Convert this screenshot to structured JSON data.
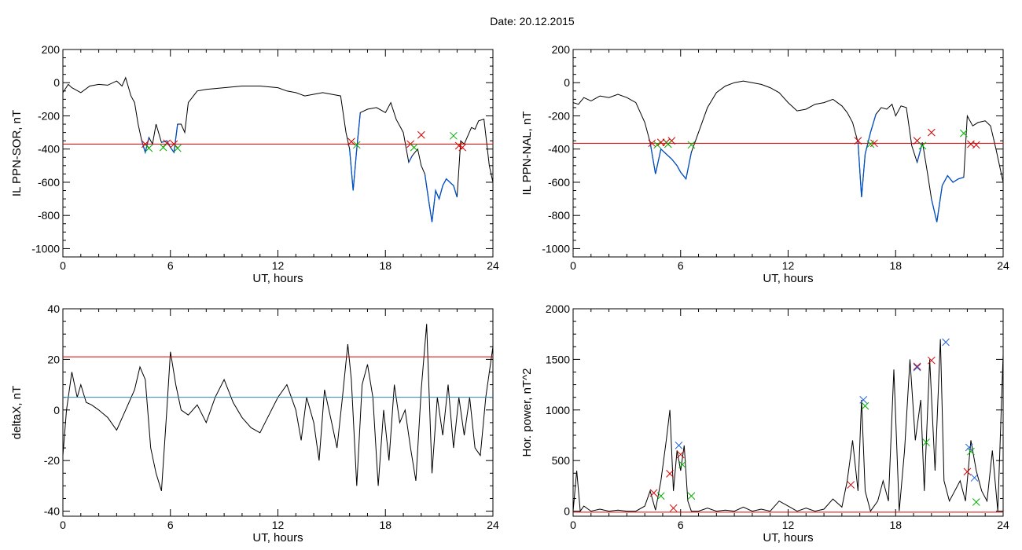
{
  "page": {
    "title": "Date:  20.12.2015"
  },
  "colors": {
    "trace": "#000000",
    "threshold": "#d40000",
    "highlight": "#0050c8",
    "mean": "#2a8ab0",
    "cross_red": "#d40000",
    "cross_green": "#00b000",
    "cross_blue": "#2060e0"
  },
  "chart_data": [
    {
      "id": "sor",
      "type": "line",
      "xlabel": "UT, hours",
      "ylabel": "IL PPN-SOR, nT",
      "xlim": [
        0,
        24
      ],
      "ylim": [
        -1050,
        200
      ],
      "xticks": [
        0,
        6,
        12,
        18,
        24
      ],
      "yticks": [
        200,
        0,
        -200,
        -400,
        -600,
        -800,
        -1000
      ],
      "x": [
        0,
        0.3,
        0.5,
        1,
        1.5,
        2,
        2.5,
        3,
        3.3,
        3.5,
        3.8,
        4,
        4.2,
        4.4,
        4.6,
        4.8,
        5,
        5.2,
        5.5,
        5.8,
        6,
        6.2,
        6.4,
        6.6,
        6.8,
        7,
        7.5,
        8,
        9,
        10,
        11,
        12,
        12.5,
        13,
        13.5,
        14,
        14.5,
        15,
        15.5,
        15.8,
        16,
        16.2,
        16.4,
        16.6,
        17,
        17.5,
        18,
        18.3,
        18.6,
        19,
        19.3,
        19.5,
        19.8,
        20,
        20.2,
        20.4,
        20.6,
        20.8,
        21,
        21.2,
        21.4,
        21.6,
        21.8,
        22,
        22.2,
        22.4,
        22.6,
        22.8,
        23,
        23.2,
        23.5,
        23.8,
        24
      ],
      "y": [
        -60,
        -10,
        -30,
        -60,
        -20,
        -10,
        -15,
        10,
        -20,
        30,
        -80,
        -120,
        -250,
        -350,
        -420,
        -330,
        -370,
        -250,
        -360,
        -350,
        -390,
        -420,
        -250,
        -250,
        -300,
        -120,
        -50,
        -40,
        -30,
        -20,
        -20,
        -30,
        -50,
        -60,
        -80,
        -70,
        -60,
        -70,
        -80,
        -300,
        -400,
        -650,
        -400,
        -180,
        -160,
        -150,
        -180,
        -120,
        -220,
        -300,
        -480,
        -440,
        -400,
        -500,
        -550,
        -700,
        -840,
        -650,
        -700,
        -620,
        -580,
        -600,
        -620,
        -690,
        -350,
        -370,
        -320,
        -270,
        -280,
        -230,
        -220,
        -500,
        -600
      ],
      "highlight_segments": [
        [
          4.4,
          4.8
        ],
        [
          5.5,
          6.5
        ],
        [
          16,
          16.6
        ],
        [
          19.2,
          19.6
        ],
        [
          20.1,
          22
        ]
      ],
      "threshold": -370,
      "crosses": [
        {
          "x": 4.6,
          "y": -370,
          "color": "red"
        },
        {
          "x": 5.8,
          "y": -365,
          "color": "red"
        },
        {
          "x": 6.2,
          "y": -370,
          "color": "red"
        },
        {
          "x": 16.1,
          "y": -355,
          "color": "red"
        },
        {
          "x": 19.4,
          "y": -370,
          "color": "red"
        },
        {
          "x": 20,
          "y": -315,
          "color": "red"
        },
        {
          "x": 22.1,
          "y": -380,
          "color": "red"
        },
        {
          "x": 22.3,
          "y": -390,
          "color": "red"
        },
        {
          "x": 4.8,
          "y": -395,
          "color": "green"
        },
        {
          "x": 5.6,
          "y": -390,
          "color": "green"
        },
        {
          "x": 6.4,
          "y": -395,
          "color": "green"
        },
        {
          "x": 16.4,
          "y": -375,
          "color": "green"
        },
        {
          "x": 19.6,
          "y": -390,
          "color": "green"
        },
        {
          "x": 21.8,
          "y": -320,
          "color": "green"
        }
      ]
    },
    {
      "id": "nal",
      "type": "line",
      "xlabel": "UT, hours",
      "ylabel": "IL PPN-NAL, nT",
      "xlim": [
        0,
        24
      ],
      "ylim": [
        -1050,
        200
      ],
      "xticks": [
        0,
        6,
        12,
        18,
        24
      ],
      "yticks": [
        200,
        0,
        -200,
        -400,
        -600,
        -800,
        -1000
      ],
      "x": [
        0,
        0.3,
        0.6,
        1,
        1.5,
        2,
        2.5,
        3,
        3.5,
        4,
        4.3,
        4.6,
        4.9,
        5.2,
        5.5,
        5.8,
        6,
        6.3,
        6.6,
        7,
        7.5,
        8,
        8.5,
        9,
        9.5,
        10,
        10.5,
        11,
        11.5,
        12,
        12.5,
        13,
        13.5,
        14,
        14.5,
        15,
        15.3,
        15.6,
        15.9,
        16.1,
        16.3,
        16.6,
        16.9,
        17.2,
        17.5,
        17.8,
        18,
        18.3,
        18.6,
        18.9,
        19.2,
        19.5,
        19.8,
        20,
        20.3,
        20.6,
        20.9,
        21.2,
        21.5,
        21.8,
        22,
        22.3,
        22.6,
        23,
        23.3,
        23.6,
        24
      ],
      "y": [
        -120,
        -130,
        -90,
        -110,
        -80,
        -90,
        -70,
        -90,
        -120,
        -240,
        -360,
        -550,
        -400,
        -430,
        -460,
        -500,
        -540,
        -580,
        -420,
        -300,
        -150,
        -60,
        -20,
        0,
        10,
        0,
        -10,
        -30,
        -60,
        -120,
        -170,
        -160,
        -130,
        -120,
        -100,
        -140,
        -180,
        -240,
        -360,
        -690,
        -430,
        -300,
        -190,
        -150,
        -160,
        -130,
        -200,
        -140,
        -150,
        -380,
        -480,
        -360,
        -560,
        -700,
        -840,
        -620,
        -560,
        -600,
        -580,
        -570,
        -200,
        -260,
        -240,
        -230,
        -260,
        -400,
        -600
      ],
      "highlight_segments": [
        [
          4.3,
          6.6
        ],
        [
          15.9,
          16.9
        ],
        [
          19.2,
          19.6
        ],
        [
          20,
          21.8
        ]
      ],
      "threshold": -365,
      "crosses": [
        {
          "x": 4.4,
          "y": -365,
          "color": "red"
        },
        {
          "x": 4.9,
          "y": -360,
          "color": "red"
        },
        {
          "x": 5.2,
          "y": -360,
          "color": "red"
        },
        {
          "x": 5.5,
          "y": -350,
          "color": "red"
        },
        {
          "x": 15.9,
          "y": -350,
          "color": "red"
        },
        {
          "x": 16.8,
          "y": -365,
          "color": "red"
        },
        {
          "x": 19.2,
          "y": -350,
          "color": "red"
        },
        {
          "x": 20,
          "y": -300,
          "color": "red"
        },
        {
          "x": 22.2,
          "y": -370,
          "color": "red"
        },
        {
          "x": 22.5,
          "y": -375,
          "color": "red"
        },
        {
          "x": 4.7,
          "y": -375,
          "color": "green"
        },
        {
          "x": 5.3,
          "y": -370,
          "color": "green"
        },
        {
          "x": 6.6,
          "y": -375,
          "color": "green"
        },
        {
          "x": 16.6,
          "y": -370,
          "color": "green"
        },
        {
          "x": 19.5,
          "y": -380,
          "color": "green"
        },
        {
          "x": 21.8,
          "y": -305,
          "color": "green"
        }
      ]
    },
    {
      "id": "deltax",
      "type": "line",
      "xlabel": "UT, hours",
      "ylabel": "deltaX, nT",
      "xlim": [
        0,
        24
      ],
      "ylim": [
        -42,
        40
      ],
      "xticks": [
        0,
        6,
        12,
        18,
        24
      ],
      "yticks": [
        40,
        20,
        0,
        -20,
        -40
      ],
      "x": [
        0,
        0.2,
        0.5,
        0.8,
        1,
        1.3,
        1.6,
        2,
        2.5,
        3,
        3.5,
        4,
        4.3,
        4.6,
        4.9,
        5.2,
        5.5,
        5.8,
        6,
        6.3,
        6.6,
        7,
        7.5,
        8,
        8.5,
        9,
        9.5,
        10,
        10.5,
        11,
        11.5,
        12,
        12.5,
        13,
        13.3,
        13.6,
        14,
        14.3,
        14.6,
        15,
        15.3,
        15.6,
        15.9,
        16.1,
        16.4,
        16.7,
        17,
        17.3,
        17.6,
        17.9,
        18.2,
        18.5,
        18.8,
        19.1,
        19.4,
        19.7,
        20,
        20.3,
        20.6,
        20.9,
        21.2,
        21.5,
        21.8,
        22.1,
        22.4,
        22.7,
        23,
        23.3,
        23.6,
        24
      ],
      "y": [
        -18,
        0,
        15,
        5,
        10,
        3,
        2,
        0,
        -3,
        -8,
        0,
        8,
        17,
        12,
        -15,
        -25,
        -32,
        0,
        23,
        10,
        0,
        -2,
        2,
        -5,
        5,
        12,
        3,
        -3,
        -7,
        -9,
        -2,
        5,
        10,
        0,
        -12,
        5,
        -5,
        -20,
        8,
        -5,
        -15,
        5,
        26,
        12,
        -30,
        10,
        18,
        5,
        -30,
        0,
        -20,
        10,
        -5,
        0,
        -15,
        -28,
        8,
        34,
        -25,
        5,
        -10,
        10,
        -15,
        5,
        -10,
        5,
        -15,
        -18,
        5,
        25
      ],
      "threshold": 21,
      "mean_line": 5
    },
    {
      "id": "power",
      "type": "line",
      "xlabel": "UT, hours",
      "ylabel": "Hor. power, nT^2",
      "xlim": [
        0,
        24
      ],
      "ylim": [
        -50,
        2000
      ],
      "xticks": [
        0,
        6,
        12,
        18,
        24
      ],
      "yticks": [
        2000,
        1500,
        1000,
        500,
        0
      ],
      "x": [
        0,
        0.2,
        0.4,
        0.6,
        1,
        1.5,
        2,
        2.5,
        3,
        3.5,
        4,
        4.3,
        4.6,
        4.9,
        5.2,
        5.4,
        5.6,
        5.8,
        6,
        6.2,
        6.4,
        6.6,
        7,
        7.5,
        8,
        8.5,
        9,
        9.5,
        10,
        10.5,
        11,
        11.5,
        12,
        12.5,
        13,
        13.5,
        14,
        14.5,
        15,
        15.3,
        15.6,
        15.9,
        16.1,
        16.3,
        16.6,
        17,
        17.3,
        17.6,
        17.9,
        18.2,
        18.5,
        18.8,
        19.1,
        19.4,
        19.6,
        19.9,
        20.2,
        20.5,
        20.7,
        21,
        21.3,
        21.6,
        21.9,
        22.2,
        22.5,
        22.8,
        23.1,
        23.4,
        23.7,
        24
      ],
      "y": [
        0,
        400,
        0,
        50,
        0,
        20,
        0,
        10,
        0,
        0,
        50,
        200,
        10,
        300,
        700,
        1000,
        200,
        600,
        400,
        650,
        100,
        0,
        0,
        30,
        0,
        10,
        0,
        40,
        0,
        20,
        0,
        100,
        50,
        0,
        30,
        0,
        20,
        120,
        40,
        300,
        700,
        200,
        1100,
        200,
        0,
        100,
        300,
        100,
        1400,
        0,
        600,
        1500,
        700,
        1100,
        200,
        1500,
        400,
        1700,
        300,
        100,
        200,
        300,
        100,
        700,
        400,
        200,
        100,
        600,
        0,
        1550
      ],
      "threshold": -10,
      "crosses": [
        {
          "x": 4.5,
          "y": 180,
          "color": "red"
        },
        {
          "x": 5.4,
          "y": 370,
          "color": "red"
        },
        {
          "x": 6.0,
          "y": 560,
          "color": "red"
        },
        {
          "x": 15.5,
          "y": 260,
          "color": "red"
        },
        {
          "x": 19.2,
          "y": 1430,
          "color": "red"
        },
        {
          "x": 20.0,
          "y": 1490,
          "color": "red"
        },
        {
          "x": 22.0,
          "y": 390,
          "color": "red"
        },
        {
          "x": 5.6,
          "y": 30,
          "color": "red"
        },
        {
          "x": 4.9,
          "y": 150,
          "color": "green"
        },
        {
          "x": 6.1,
          "y": 460,
          "color": "green"
        },
        {
          "x": 6.6,
          "y": 150,
          "color": "green"
        },
        {
          "x": 16.3,
          "y": 1040,
          "color": "green"
        },
        {
          "x": 19.7,
          "y": 680,
          "color": "green"
        },
        {
          "x": 22.2,
          "y": 590,
          "color": "green"
        },
        {
          "x": 22.5,
          "y": 90,
          "color": "green"
        },
        {
          "x": 5.9,
          "y": 650,
          "color": "blue"
        },
        {
          "x": 16.2,
          "y": 1100,
          "color": "blue"
        },
        {
          "x": 19.2,
          "y": 1420,
          "color": "blue"
        },
        {
          "x": 20.8,
          "y": 1670,
          "color": "blue"
        },
        {
          "x": 22.1,
          "y": 630,
          "color": "blue"
        },
        {
          "x": 22.4,
          "y": 330,
          "color": "blue"
        }
      ]
    }
  ]
}
